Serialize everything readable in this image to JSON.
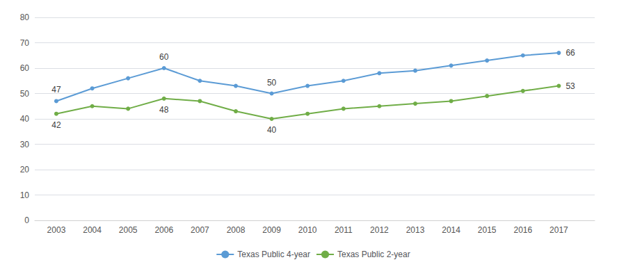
{
  "chart_data": {
    "type": "line",
    "x": [
      2003,
      2004,
      2005,
      2006,
      2007,
      2008,
      2009,
      2010,
      2011,
      2012,
      2013,
      2014,
      2015,
      2016,
      2017
    ],
    "series": [
      {
        "name": "Texas Public 4-year",
        "color": "#5B9BD5",
        "marker": "circle",
        "values": [
          47,
          52,
          56,
          60,
          55,
          53,
          50,
          53,
          55,
          58,
          59,
          61,
          63,
          65,
          66
        ]
      },
      {
        "name": "Texas Public 2-year",
        "color": "#70AD47",
        "marker": "circle",
        "values": [
          42,
          45,
          44,
          48,
          47,
          43,
          40,
          42,
          44,
          45,
          46,
          47,
          49,
          51,
          53
        ]
      }
    ],
    "xlim": [
      2002.4,
      2018.0
    ],
    "xticks": [
      2003,
      2004,
      2005,
      2006,
      2007,
      2008,
      2009,
      2010,
      2011,
      2012,
      2013,
      2014,
      2015,
      2016,
      2017
    ],
    "ylim": [
      0,
      80
    ],
    "yticks": [
      0,
      10,
      20,
      30,
      40,
      50,
      60,
      70,
      80
    ],
    "grid": true,
    "legend": "bottom",
    "annotations": [
      {
        "series": "Texas Public 4-year",
        "x": 2003,
        "y": 47,
        "text": "47"
      },
      {
        "series": "Texas Public 4-year",
        "x": 2006,
        "y": 60,
        "text": "60"
      },
      {
        "series": "Texas Public 4-year",
        "x": 2009,
        "y": 50,
        "text": "50"
      },
      {
        "series": "Texas Public 4-year",
        "x": 2017,
        "y": 66,
        "text": "66"
      },
      {
        "series": "Texas Public 2-year",
        "x": 2003,
        "y": 42,
        "text": "42"
      },
      {
        "series": "Texas Public 2-year",
        "x": 2006,
        "y": 48,
        "text": "48"
      },
      {
        "series": "Texas Public 2-year",
        "x": 2009,
        "y": 40,
        "text": "40"
      },
      {
        "series": "Texas Public 2-year",
        "x": 2017,
        "y": 53,
        "text": "53"
      }
    ]
  }
}
